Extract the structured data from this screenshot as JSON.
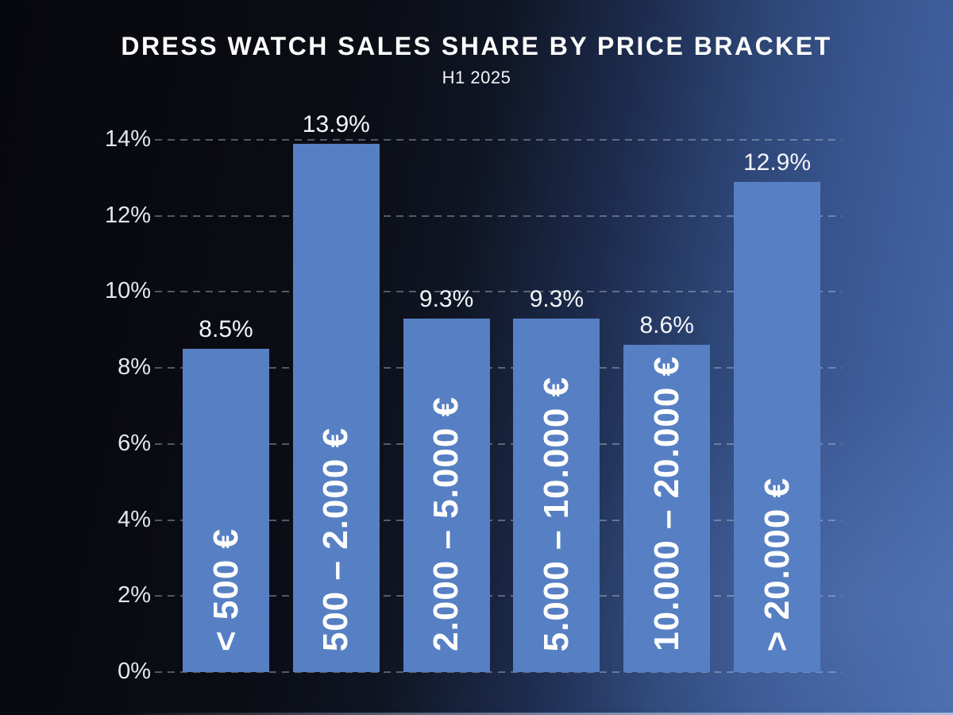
{
  "header": {
    "title": "DRESS WATCH SALES SHARE BY PRICE BRACKET",
    "subtitle": "H1 2025"
  },
  "chart_data": {
    "type": "bar",
    "title": "DRESS WATCH SALES SHARE BY PRICE BRACKET",
    "subtitle": "H1 2025",
    "categories": [
      "< 500 €",
      "500 – 2.000 €",
      "2.000 – 5.000 €",
      "5.000 – 10.000 €",
      "10.000 – 20.000 €",
      "> 20.000 €"
    ],
    "values": [
      8.5,
      13.9,
      9.3,
      9.3,
      8.6,
      12.9
    ],
    "value_labels": [
      "8.5%",
      "13.9%",
      "9.3%",
      "9.3%",
      "8.6%",
      "12.9%"
    ],
    "xlabel": "",
    "ylabel": "",
    "ylim": [
      0,
      14
    ],
    "y_tick_step": 2,
    "y_ticks": [
      "0%",
      "2%",
      "4%",
      "6%",
      "8%",
      "10%",
      "12%",
      "14%"
    ],
    "grid": "horizontal-dashed",
    "legend": "none",
    "style": {
      "bar_color": "#567fc4",
      "grid_color": "rgba(203,210,223,0.38)",
      "tick_color": "#e2e6ed",
      "value_label_color": "#f4f6f9",
      "category_label_color": "#ffffff",
      "background_dark": "#0a0c12",
      "background_blue": "#4a6cab",
      "title_color": "#ffffff"
    }
  }
}
